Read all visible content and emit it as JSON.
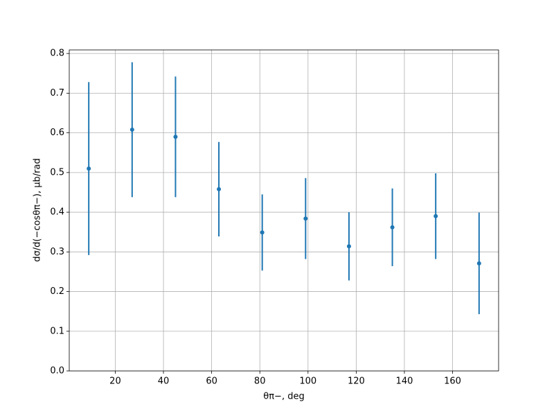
{
  "chart_data": {
    "type": "errorbar",
    "x_label": "θπ−, deg",
    "y_label": "dσ/d(−cosθπ−), μb/rad",
    "series": [
      {
        "color": "#1f77b4",
        "x": [
          9,
          27,
          45,
          63,
          81,
          99,
          117,
          135,
          153,
          171
        ],
        "values": [
          0.51,
          0.608,
          0.59,
          0.458,
          0.349,
          0.384,
          0.314,
          0.362,
          0.39,
          0.271
        ],
        "errors": [
          0.218,
          0.17,
          0.152,
          0.119,
          0.096,
          0.102,
          0.086,
          0.098,
          0.108,
          0.128
        ]
      }
    ],
    "xlim": [
      0.9,
      179.1
    ],
    "ylim": [
      0,
      0.809
    ],
    "xticks": [
      20,
      40,
      60,
      80,
      100,
      120,
      140,
      160
    ],
    "yticks": [
      {
        "value": 0,
        "label": "0.0"
      },
      0.1,
      0.2,
      0.3,
      0.4,
      0.5,
      0.6,
      0.7,
      0.8
    ],
    "grid": true
  }
}
